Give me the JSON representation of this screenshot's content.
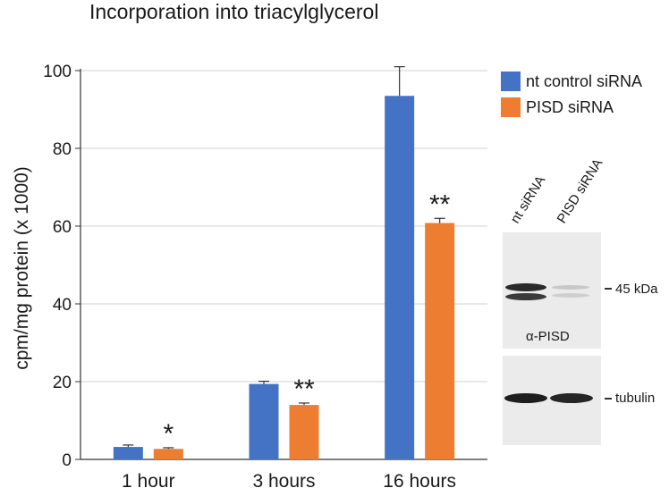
{
  "chart_data": {
    "type": "bar",
    "title": "Incorporation into triacylglycerol",
    "ylabel": "cpm/mg protein (x 1000)",
    "xlabel": "",
    "ylim": [
      0,
      100
    ],
    "yticks": [
      0,
      20,
      40,
      60,
      80,
      100
    ],
    "grid": true,
    "legend_position": "top-right",
    "categories": [
      "1 hour",
      "3 hours",
      "16 hours"
    ],
    "series": [
      {
        "name": "nt control siRNA",
        "color": "#4472C4",
        "values": [
          3.2,
          19.4,
          93.5
        ],
        "errors": [
          0.5,
          0.7,
          7.5
        ]
      },
      {
        "name": "PISD siRNA",
        "color": "#ED7D31",
        "values": [
          2.7,
          14.0,
          60.8
        ],
        "errors": [
          0.3,
          0.5,
          1.2
        ]
      }
    ],
    "annotations": [
      "*",
      "**",
      "**"
    ]
  },
  "blot": {
    "lane_labels": [
      "nt siRNA",
      "PISD siRNA"
    ],
    "marker": "45 kDa",
    "antibody": "α-PISD",
    "loading_control": "tubulin"
  }
}
